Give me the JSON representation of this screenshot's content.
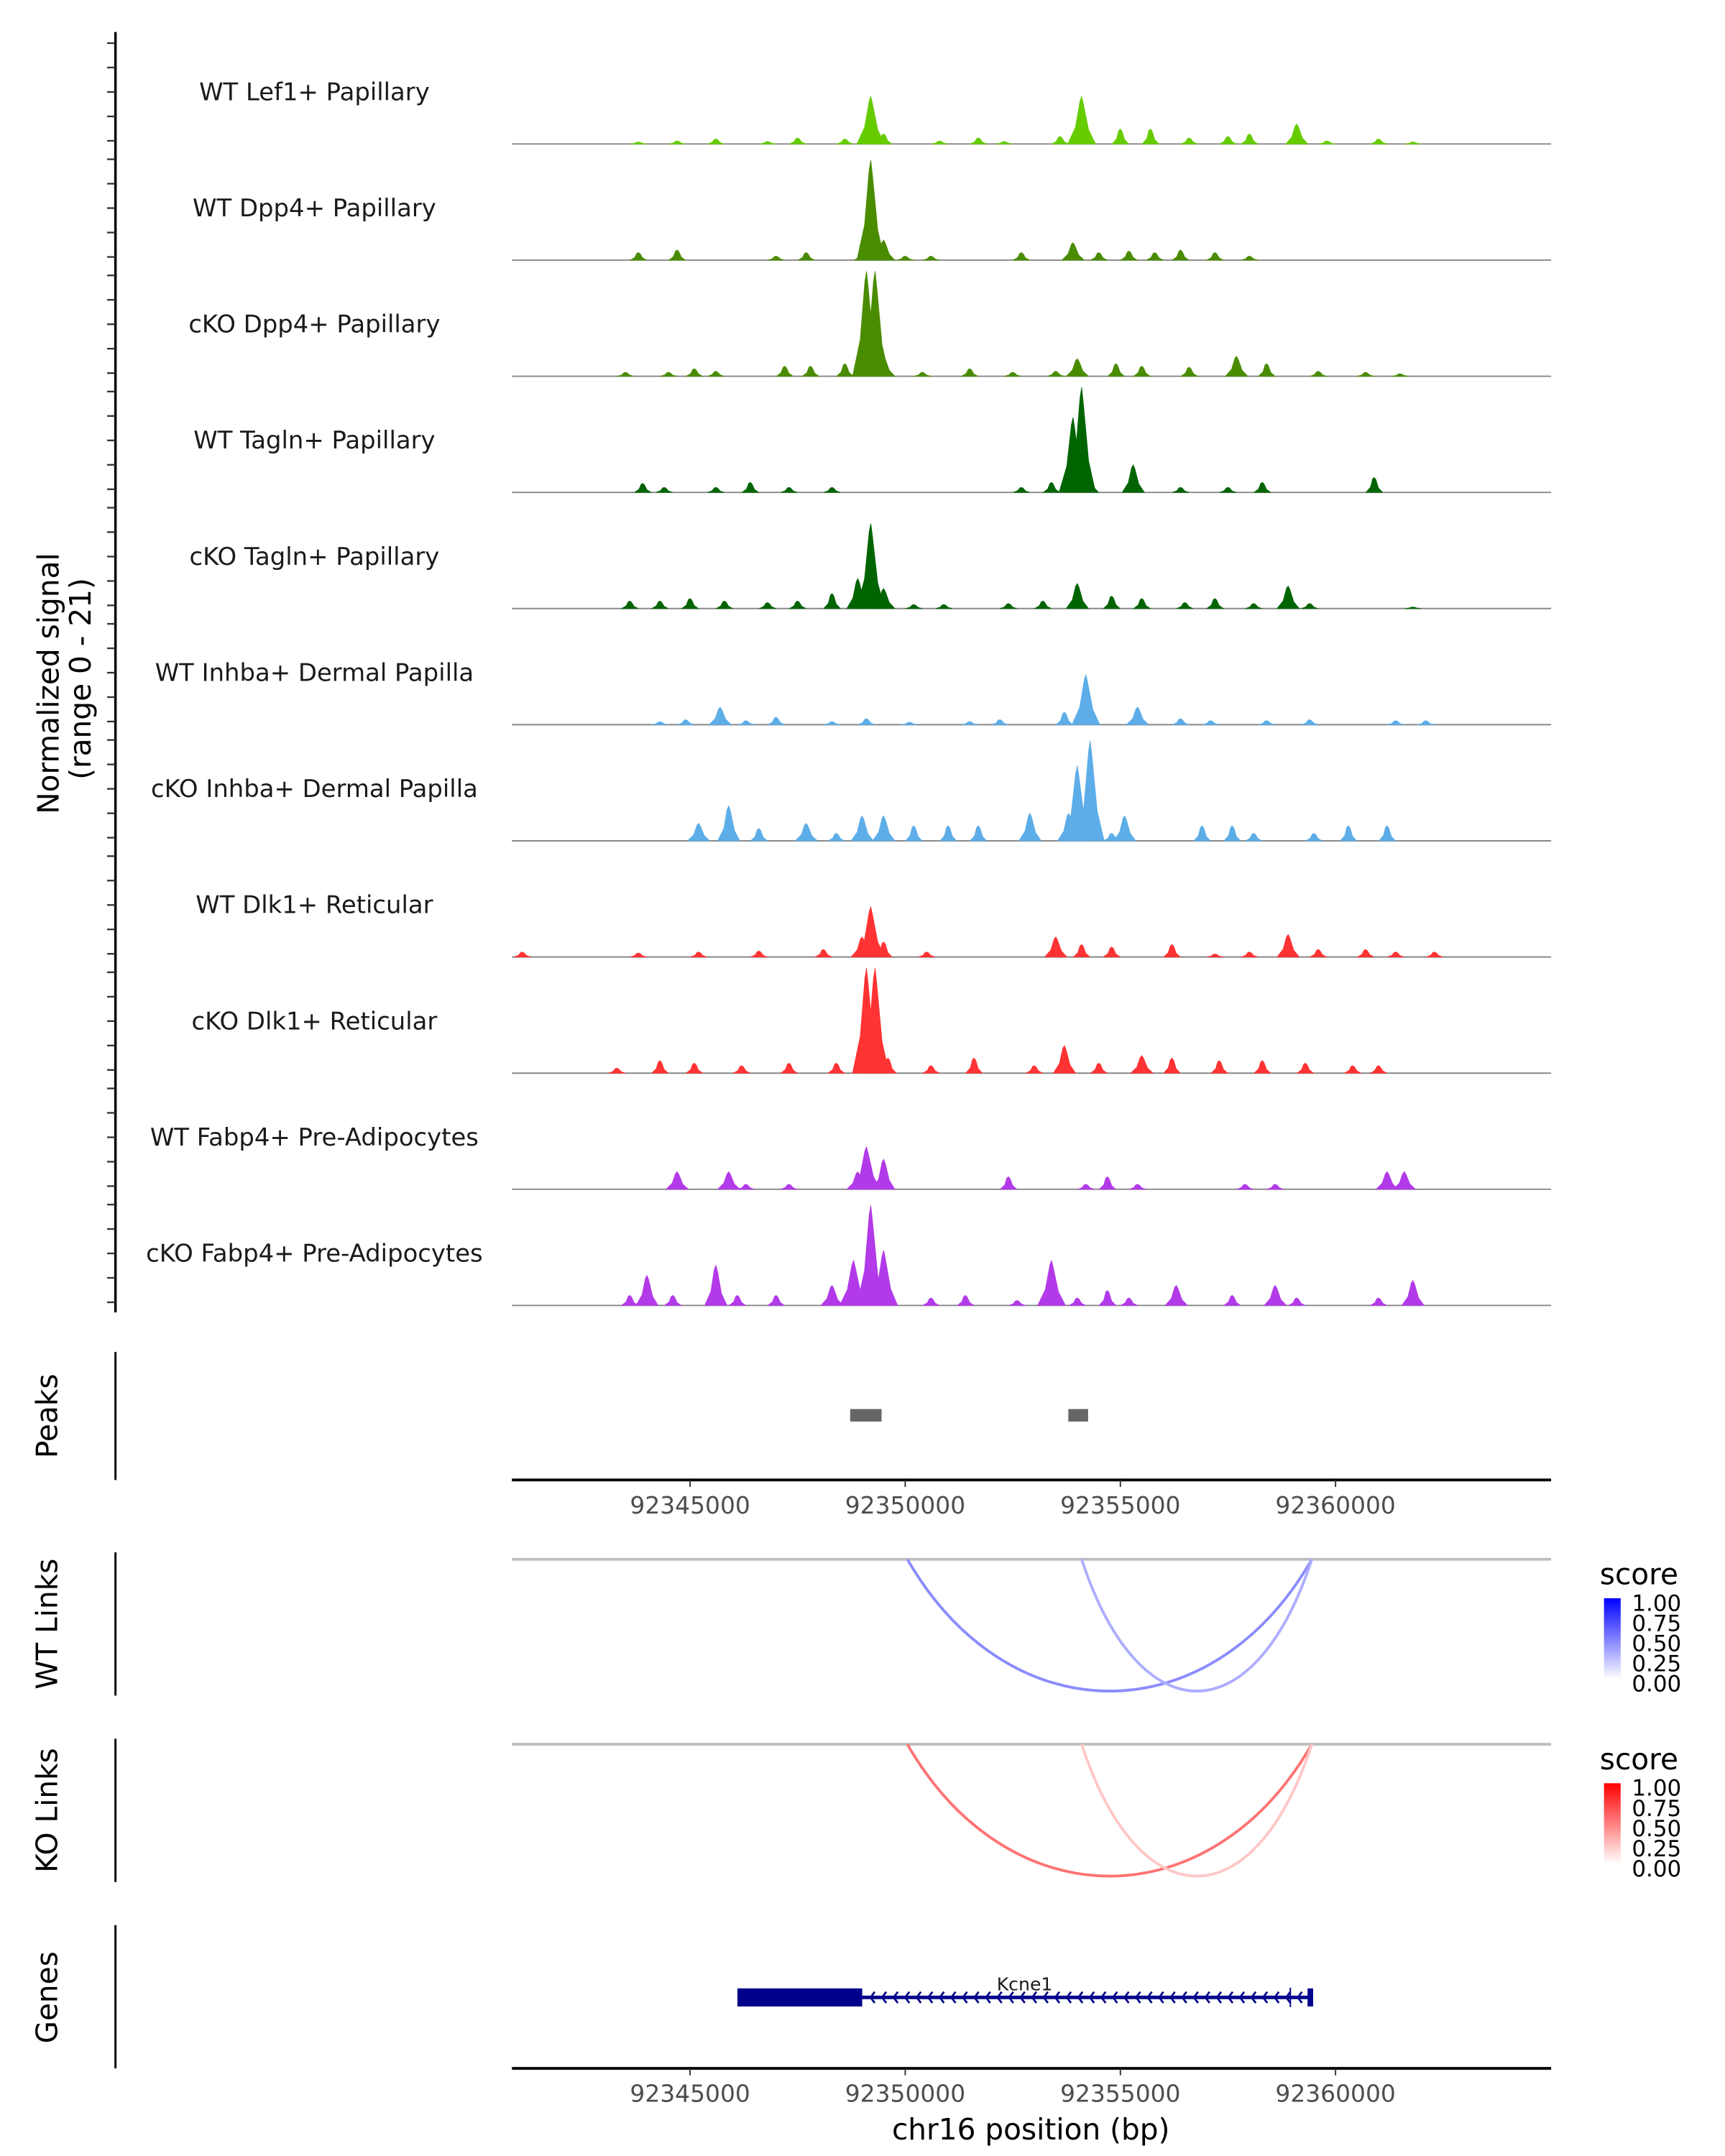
{
  "chart_data": {
    "type": "area",
    "title": "",
    "xlabel": "chr16 position (bp)",
    "ylabel": "Normalized signal\n(range 0 - 21)",
    "ylabel_lines": [
      "Normalized signal",
      "(range 0 - 21)"
    ],
    "xlim": [
      92340860,
      92365010
    ],
    "ylim": [
      0,
      21
    ],
    "x_ticks": [
      92345000,
      92350000,
      92355000,
      92360000
    ],
    "x_tick_labels": [
      "92345000",
      "92350000",
      "92355000",
      "92360000"
    ],
    "grid": false,
    "coverage_tracks": [
      {
        "name": "WT Lef1+ Papillary",
        "color": "#66cc00",
        "peaks": [
          [
            92343800,
            0.4
          ],
          [
            92344700,
            0.6
          ],
          [
            92345600,
            1.0
          ],
          [
            92346800,
            0.5
          ],
          [
            92347500,
            1.2
          ],
          [
            92348600,
            1.0
          ],
          [
            92349200,
            9.5
          ],
          [
            92349500,
            2.0
          ],
          [
            92350800,
            0.6
          ],
          [
            92351700,
            1.2
          ],
          [
            92352300,
            0.5
          ],
          [
            92353600,
            1.5
          ],
          [
            92354100,
            9.5
          ],
          [
            92355000,
            3.0
          ],
          [
            92355700,
            3.0
          ],
          [
            92356600,
            1.2
          ],
          [
            92357500,
            1.5
          ],
          [
            92358000,
            2.0
          ],
          [
            92359100,
            4.0
          ],
          [
            92359800,
            0.6
          ],
          [
            92361000,
            1.0
          ],
          [
            92361800,
            0.4
          ]
        ]
      },
      {
        "name": "WT Dpp4+ Papillary",
        "color": "#4a8c00",
        "peaks": [
          [
            92343800,
            1.5
          ],
          [
            92344700,
            2.0
          ],
          [
            92347000,
            0.8
          ],
          [
            92347700,
            1.5
          ],
          [
            92349000,
            1.5
          ],
          [
            92349200,
            20.0
          ],
          [
            92349500,
            4.0
          ],
          [
            92350000,
            0.8
          ],
          [
            92350600,
            0.8
          ],
          [
            92352700,
            1.5
          ],
          [
            92353900,
            3.5
          ],
          [
            92354500,
            1.5
          ],
          [
            92355200,
            1.8
          ],
          [
            92355800,
            1.5
          ],
          [
            92356400,
            2.0
          ],
          [
            92357200,
            1.5
          ],
          [
            92358000,
            0.8
          ]
        ]
      },
      {
        "name": "cKO Dpp4+ Papillary",
        "color": "#4a8c00",
        "peaks": [
          [
            92343500,
            0.8
          ],
          [
            92344500,
            0.8
          ],
          [
            92345100,
            1.5
          ],
          [
            92345600,
            1.0
          ],
          [
            92347200,
            2.0
          ],
          [
            92347800,
            2.0
          ],
          [
            92348600,
            2.5
          ],
          [
            92349100,
            21.0
          ],
          [
            92349300,
            21.0
          ],
          [
            92349500,
            4.0
          ],
          [
            92350400,
            0.8
          ],
          [
            92351500,
            1.5
          ],
          [
            92352500,
            0.8
          ],
          [
            92353500,
            1.0
          ],
          [
            92354000,
            3.5
          ],
          [
            92354900,
            2.5
          ],
          [
            92355500,
            2.0
          ],
          [
            92356600,
            1.8
          ],
          [
            92357700,
            4.0
          ],
          [
            92358400,
            2.5
          ],
          [
            92359600,
            1.0
          ],
          [
            92360700,
            0.8
          ],
          [
            92361500,
            0.5
          ]
        ]
      },
      {
        "name": "WT Tagln+ Papillary",
        "color": "#006400",
        "peaks": [
          [
            92343900,
            1.8
          ],
          [
            92344400,
            1.0
          ],
          [
            92345600,
            1.0
          ],
          [
            92346400,
            2.0
          ],
          [
            92347300,
            1.0
          ],
          [
            92348300,
            1.0
          ],
          [
            92352700,
            1.0
          ],
          [
            92353400,
            2.0
          ],
          [
            92353900,
            15.0
          ],
          [
            92354100,
            21.0
          ],
          [
            92354300,
            3.0
          ],
          [
            92355300,
            5.5
          ],
          [
            92356400,
            1.0
          ],
          [
            92357500,
            1.0
          ],
          [
            92358300,
            2.0
          ],
          [
            92360900,
            3.0
          ]
        ]
      },
      {
        "name": "cKO Tagln+ Papillary",
        "color": "#006400",
        "peaks": [
          [
            92343600,
            1.5
          ],
          [
            92344300,
            1.5
          ],
          [
            92345000,
            2.0
          ],
          [
            92345800,
            1.5
          ],
          [
            92346800,
            1.2
          ],
          [
            92347500,
            1.5
          ],
          [
            92348300,
            3.0
          ],
          [
            92348900,
            6.0
          ],
          [
            92349200,
            17.0
          ],
          [
            92349500,
            4.0
          ],
          [
            92350200,
            0.8
          ],
          [
            92350900,
            0.8
          ],
          [
            92352400,
            1.0
          ],
          [
            92353200,
            1.5
          ],
          [
            92354000,
            5.0
          ],
          [
            92354800,
            2.5
          ],
          [
            92355500,
            2.0
          ],
          [
            92356500,
            1.2
          ],
          [
            92357200,
            2.0
          ],
          [
            92358100,
            1.0
          ],
          [
            92358900,
            4.5
          ],
          [
            92359400,
            1.0
          ],
          [
            92361800,
            0.3
          ]
        ]
      },
      {
        "name": "WT Inhba+ Dermal Papilla",
        "color": "#5dade8",
        "peaks": [
          [
            92344300,
            0.6
          ],
          [
            92344900,
            1.0
          ],
          [
            92345700,
            3.5
          ],
          [
            92346300,
            0.8
          ],
          [
            92347000,
            1.5
          ],
          [
            92348300,
            0.6
          ],
          [
            92349100,
            1.2
          ],
          [
            92350100,
            0.5
          ],
          [
            92351500,
            0.6
          ],
          [
            92352200,
            1.0
          ],
          [
            92353700,
            2.5
          ],
          [
            92354200,
            10.0
          ],
          [
            92355400,
            3.5
          ],
          [
            92356400,
            1.2
          ],
          [
            92357100,
            0.8
          ],
          [
            92358400,
            0.8
          ],
          [
            92359400,
            1.0
          ],
          [
            92361400,
            0.8
          ],
          [
            92362100,
            0.8
          ]
        ]
      },
      {
        "name": "cKO Inhba+ Dermal Papilla",
        "color": "#5dade8",
        "peaks": [
          [
            92345200,
            3.5
          ],
          [
            92345900,
            7.0
          ],
          [
            92346600,
            2.5
          ],
          [
            92347700,
            3.5
          ],
          [
            92348400,
            1.5
          ],
          [
            92349000,
            5.0
          ],
          [
            92349500,
            5.0
          ],
          [
            92350200,
            3.0
          ],
          [
            92351000,
            3.0
          ],
          [
            92351700,
            3.0
          ],
          [
            92352900,
            5.5
          ],
          [
            92353800,
            5.5
          ],
          [
            92354000,
            15.0
          ],
          [
            92354300,
            20.0
          ],
          [
            92354800,
            1.5
          ],
          [
            92355100,
            5.0
          ],
          [
            92356900,
            3.0
          ],
          [
            92357600,
            3.0
          ],
          [
            92358100,
            1.5
          ],
          [
            92359500,
            1.5
          ],
          [
            92360300,
            3.0
          ],
          [
            92361200,
            3.0
          ]
        ]
      },
      {
        "name": "WT Dlk1+ Reticular",
        "color": "#ff3333",
        "peaks": [
          [
            92341100,
            1.0
          ],
          [
            92343800,
            0.8
          ],
          [
            92345200,
            1.0
          ],
          [
            92346600,
            1.2
          ],
          [
            92348100,
            1.5
          ],
          [
            92349000,
            4.0
          ],
          [
            92349200,
            10.0
          ],
          [
            92349500,
            3.0
          ],
          [
            92350500,
            1.0
          ],
          [
            92353500,
            4.0
          ],
          [
            92354100,
            2.5
          ],
          [
            92354800,
            2.0
          ],
          [
            92356200,
            2.5
          ],
          [
            92357200,
            0.6
          ],
          [
            92358000,
            1.0
          ],
          [
            92358900,
            4.5
          ],
          [
            92359600,
            1.5
          ],
          [
            92360700,
            1.5
          ],
          [
            92361400,
            1.0
          ],
          [
            92362300,
            1.0
          ]
        ]
      },
      {
        "name": "cKO Dlk1+ Reticular",
        "color": "#ff3333",
        "peaks": [
          [
            92343300,
            1.0
          ],
          [
            92344300,
            2.5
          ],
          [
            92345100,
            2.0
          ],
          [
            92346200,
            1.5
          ],
          [
            92347300,
            2.0
          ],
          [
            92348400,
            2.0
          ],
          [
            92349100,
            21.0
          ],
          [
            92349300,
            21.0
          ],
          [
            92349600,
            3.0
          ],
          [
            92350600,
            1.5
          ],
          [
            92351600,
            3.0
          ],
          [
            92353000,
            1.5
          ],
          [
            92353700,
            5.5
          ],
          [
            92354500,
            2.0
          ],
          [
            92355500,
            3.5
          ],
          [
            92356200,
            3.0
          ],
          [
            92357300,
            2.5
          ],
          [
            92358300,
            2.5
          ],
          [
            92359300,
            2.0
          ],
          [
            92360400,
            1.5
          ],
          [
            92361000,
            1.5
          ]
        ]
      },
      {
        "name": "WT Fabp4+ Pre-Adipocytes",
        "color": "#b23ae8",
        "peaks": [
          [
            92344700,
            3.5
          ],
          [
            92345900,
            3.5
          ],
          [
            92346300,
            1.0
          ],
          [
            92347300,
            1.0
          ],
          [
            92348900,
            3.5
          ],
          [
            92349100,
            8.5
          ],
          [
            92349500,
            6.0
          ],
          [
            92352400,
            2.5
          ],
          [
            92354200,
            1.0
          ],
          [
            92354700,
            2.5
          ],
          [
            92355400,
            1.0
          ],
          [
            92357900,
            1.0
          ],
          [
            92358600,
            1.0
          ],
          [
            92361200,
            3.5
          ],
          [
            92361600,
            3.5
          ]
        ]
      },
      {
        "name": "cKO Fabp4+ Pre-Adipocytes",
        "color": "#b23ae8",
        "peaks": [
          [
            92343600,
            2.0
          ],
          [
            92344000,
            6.0
          ],
          [
            92344600,
            2.0
          ],
          [
            92345600,
            8.0
          ],
          [
            92346100,
            2.0
          ],
          [
            92347000,
            2.0
          ],
          [
            92348300,
            4.0
          ],
          [
            92348800,
            9.0
          ],
          [
            92349200,
            20.0
          ],
          [
            92349500,
            11.0
          ],
          [
            92350600,
            1.5
          ],
          [
            92351400,
            2.0
          ],
          [
            92352600,
            1.0
          ],
          [
            92353400,
            9.0
          ],
          [
            92354000,
            1.5
          ],
          [
            92354700,
            3.0
          ],
          [
            92355200,
            1.5
          ],
          [
            92356300,
            4.0
          ],
          [
            92357600,
            2.0
          ],
          [
            92358600,
            4.0
          ],
          [
            92359100,
            1.5
          ],
          [
            92361000,
            1.5
          ],
          [
            92361800,
            5.0
          ]
        ]
      }
    ],
    "peaks_track": {
      "label": "Peaks",
      "color": "#666666",
      "regions": [
        [
          92348720,
          92349450
        ],
        [
          92353790,
          92354250
        ]
      ]
    },
    "links": [
      {
        "label": "WT Links",
        "legend_title": "score",
        "color_high": "#0000ff",
        "color_low": "#ffffff",
        "legend_ticks": [
          "1.00",
          "0.75",
          "0.50",
          "0.25",
          "0.00"
        ],
        "arcs": [
          {
            "start": 92350050,
            "end": 92359450,
            "score": 0.45
          },
          {
            "start": 92354100,
            "end": 92359450,
            "score": 0.32
          }
        ]
      },
      {
        "label": "KO Links",
        "legend_title": "score",
        "color_high": "#ff0000",
        "color_low": "#ffffff",
        "legend_ticks": [
          "1.00",
          "0.75",
          "0.50",
          "0.25",
          "0.00"
        ],
        "arcs": [
          {
            "start": 92350050,
            "end": 92359450,
            "score": 0.55
          },
          {
            "start": 92354100,
            "end": 92359450,
            "score": 0.22
          }
        ]
      }
    ],
    "genes_track": {
      "label": "Genes",
      "color": "#00008b",
      "genes": [
        {
          "name": "Kcne1",
          "strand": "-",
          "start": 92346100,
          "end": 92359450,
          "exons": [
            [
              92346100,
              92349000
            ],
            [
              92359350,
              92359450
            ]
          ],
          "thin_marks": [
            92358950
          ]
        }
      ]
    }
  }
}
